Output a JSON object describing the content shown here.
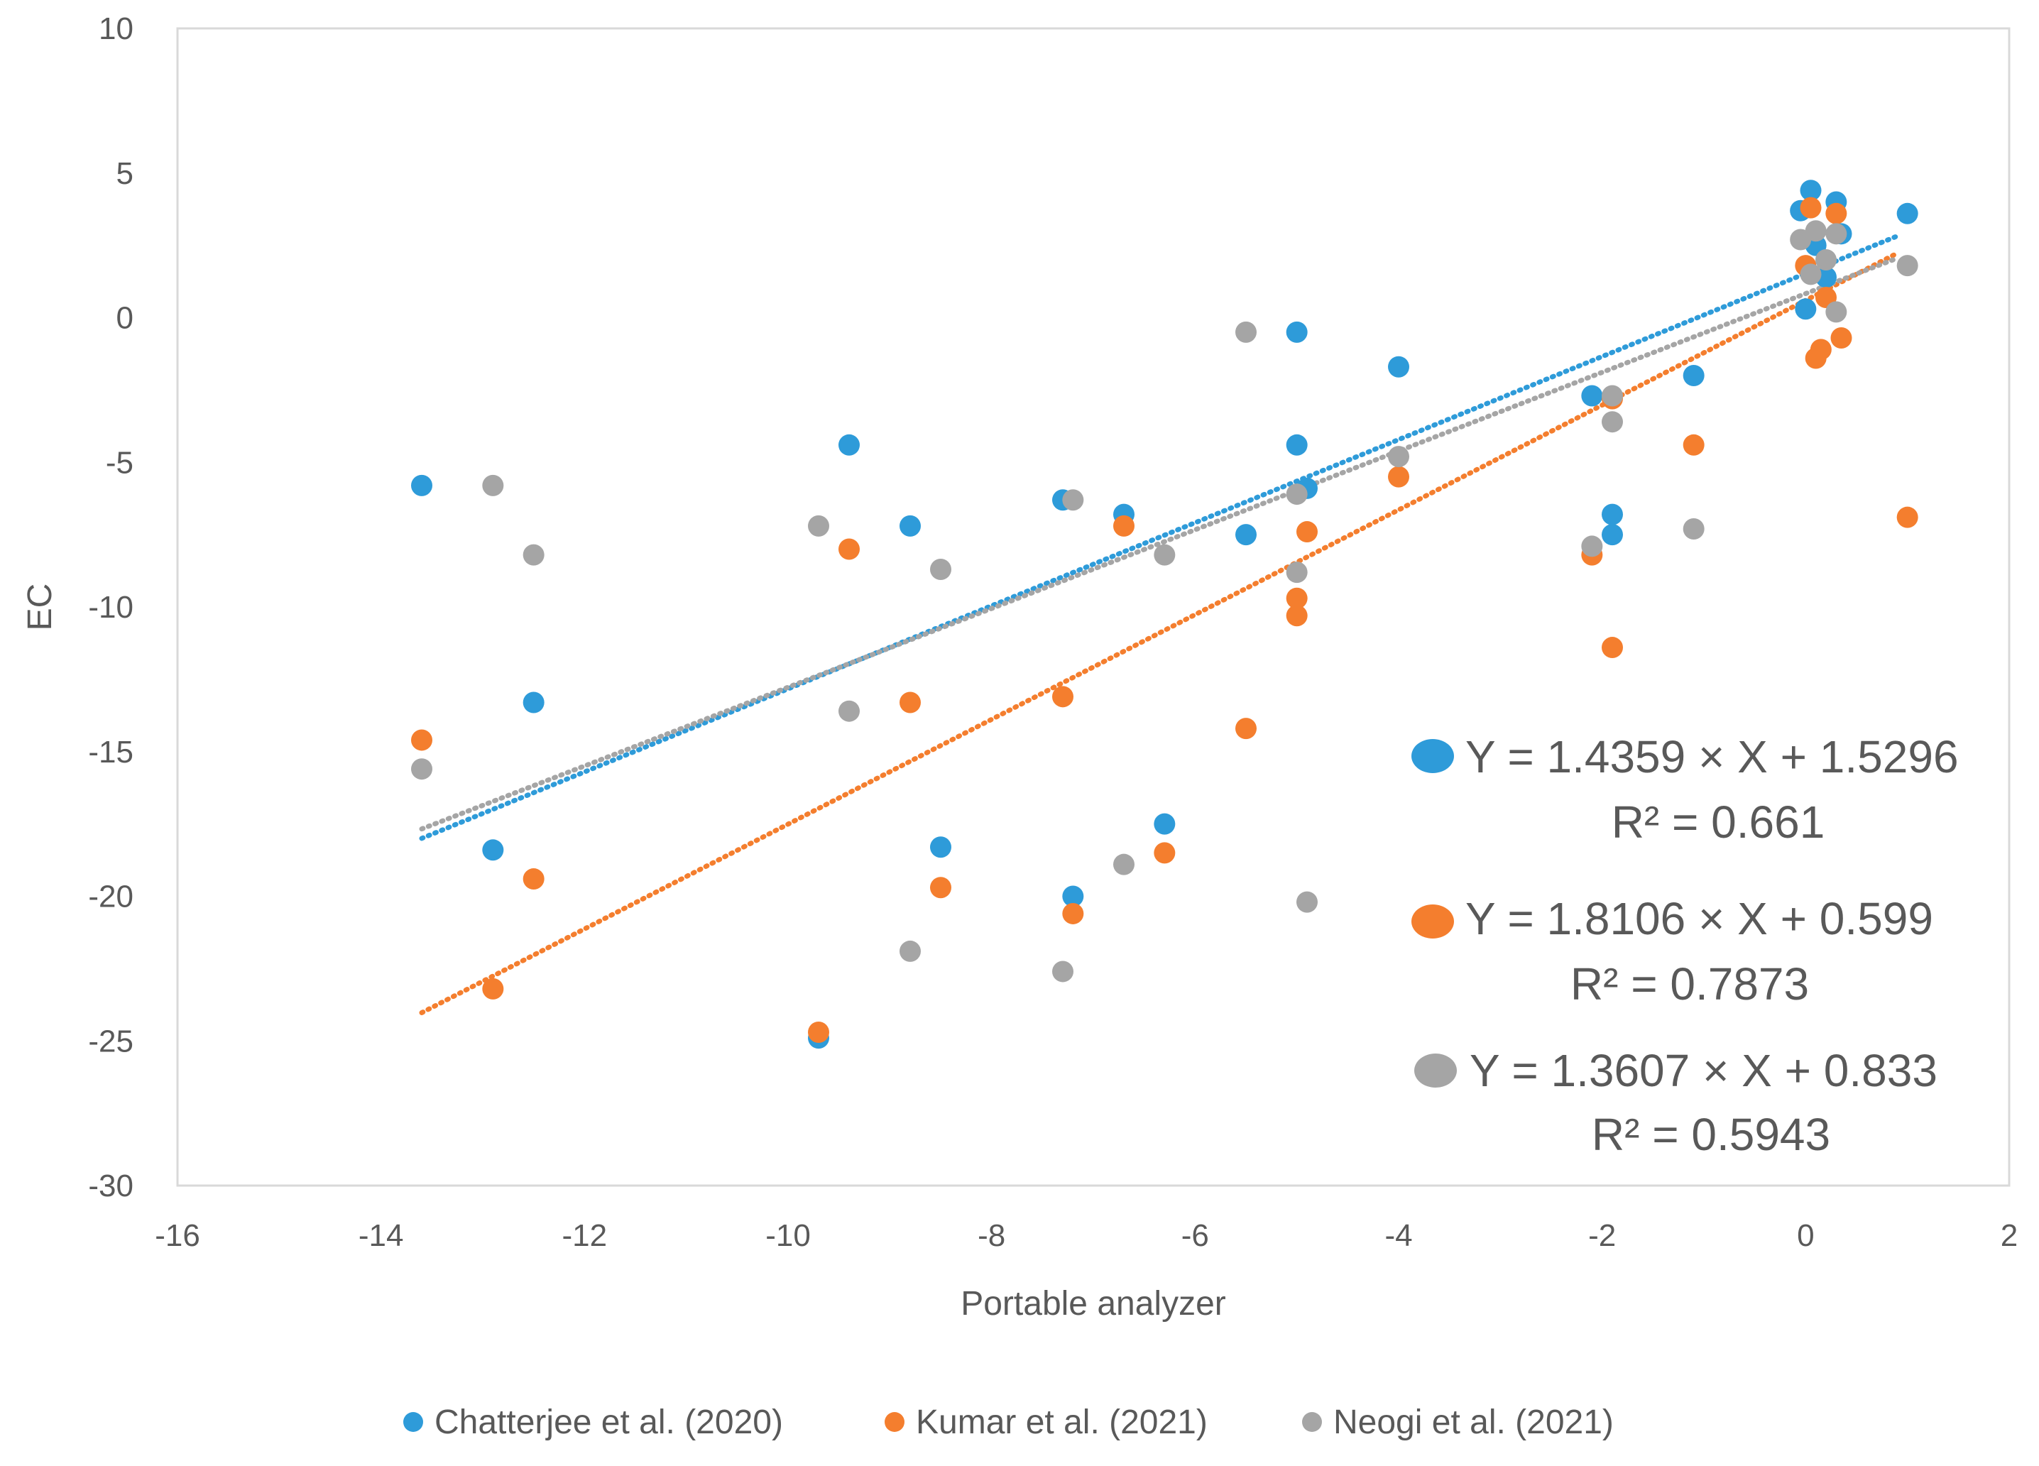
{
  "chart_data": {
    "type": "scatter",
    "title": "",
    "xlabel": "Portable analyzer",
    "ylabel": "EC",
    "xlim": [
      -16,
      2
    ],
    "ylim": [
      -30,
      10
    ],
    "x_ticks": [
      "-16",
      "-14",
      "-12",
      "-10",
      "-8",
      "-6",
      "-4",
      "-2",
      "0",
      "2"
    ],
    "y_ticks": [
      "10",
      "5",
      "0",
      "-5",
      "-10",
      "-15",
      "-20",
      "-25",
      "-30"
    ],
    "grid": false,
    "legend_position": "bottom",
    "series": [
      {
        "name": "Chatterjee et al. (2020)",
        "color": "#2E9BD9",
        "points": [
          [
            -13.6,
            -5.8
          ],
          [
            -12.9,
            -18.4
          ],
          [
            -12.5,
            -13.3
          ],
          [
            -9.7,
            -24.9
          ],
          [
            -9.4,
            -4.4
          ],
          [
            -8.8,
            -7.2
          ],
          [
            -8.5,
            -18.3
          ],
          [
            -7.3,
            -6.3
          ],
          [
            -7.2,
            -20.0
          ],
          [
            -6.7,
            -6.8
          ],
          [
            -6.3,
            -17.5
          ],
          [
            -5.5,
            -7.5
          ],
          [
            -5.0,
            -0.5
          ],
          [
            -5.0,
            -4.4
          ],
          [
            -4.9,
            -5.9
          ],
          [
            -4.0,
            -1.7
          ],
          [
            -2.1,
            -2.7
          ],
          [
            -1.9,
            -6.8
          ],
          [
            -1.9,
            -7.5
          ],
          [
            -1.1,
            -2.0
          ],
          [
            -0.05,
            3.7
          ],
          [
            0.05,
            4.4
          ],
          [
            0.1,
            2.5
          ],
          [
            0.2,
            1.4
          ],
          [
            0.3,
            4.0
          ],
          [
            0.35,
            2.9
          ],
          [
            0.0,
            0.3
          ],
          [
            1.0,
            3.6
          ]
        ],
        "trend": {
          "slope": 1.4359,
          "intercept": 1.5296,
          "x_range": [
            -13.6,
            0.9
          ]
        },
        "equation": "Y = 1.4359 × X + 1.5296",
        "r2": "R² = 0.661"
      },
      {
        "name": "Kumar et al. (2021)",
        "color": "#F47E2E",
        "points": [
          [
            -13.6,
            -14.6
          ],
          [
            -12.9,
            -23.2
          ],
          [
            -12.5,
            -19.4
          ],
          [
            -9.7,
            -24.7
          ],
          [
            -9.4,
            -8.0
          ],
          [
            -8.8,
            -13.3
          ],
          [
            -8.5,
            -19.7
          ],
          [
            -7.3,
            -13.1
          ],
          [
            -7.2,
            -20.6
          ],
          [
            -6.7,
            -7.2
          ],
          [
            -6.3,
            -18.5
          ],
          [
            -5.5,
            -14.2
          ],
          [
            -5.0,
            -9.7
          ],
          [
            -5.0,
            -10.3
          ],
          [
            -4.9,
            -7.4
          ],
          [
            -4.0,
            -5.5
          ],
          [
            -2.1,
            -8.2
          ],
          [
            -1.9,
            -2.8
          ],
          [
            -1.9,
            -11.4
          ],
          [
            -1.1,
            -4.4
          ],
          [
            0.05,
            3.8
          ],
          [
            0.1,
            -1.4
          ],
          [
            0.15,
            -1.1
          ],
          [
            0.3,
            3.6
          ],
          [
            0.35,
            -0.7
          ],
          [
            0.0,
            1.8
          ],
          [
            0.2,
            0.7
          ],
          [
            1.0,
            -6.9
          ]
        ],
        "trend": {
          "slope": 1.8106,
          "intercept": 0.599,
          "x_range": [
            -13.6,
            0.9
          ]
        },
        "equation": "Y = 1.8106 × X + 0.599",
        "r2": "R² = 0.7873"
      },
      {
        "name": "Neogi et al. (2021)",
        "color": "#A5A5A5",
        "points": [
          [
            -13.6,
            -15.6
          ],
          [
            -12.9,
            -5.8
          ],
          [
            -12.5,
            -8.2
          ],
          [
            -9.7,
            -7.2
          ],
          [
            -9.4,
            -13.6
          ],
          [
            -8.8,
            -21.9
          ],
          [
            -8.5,
            -8.7
          ],
          [
            -7.3,
            -22.6
          ],
          [
            -7.2,
            -6.3
          ],
          [
            -6.7,
            -18.9
          ],
          [
            -6.3,
            -8.2
          ],
          [
            -5.5,
            -0.5
          ],
          [
            -5.0,
            -6.1
          ],
          [
            -5.0,
            -8.8
          ],
          [
            -4.9,
            -20.2
          ],
          [
            -4.0,
            -4.8
          ],
          [
            -2.1,
            -7.9
          ],
          [
            -1.9,
            -2.7
          ],
          [
            -1.9,
            -3.6
          ],
          [
            -1.1,
            -7.3
          ],
          [
            -0.05,
            2.7
          ],
          [
            0.1,
            3.0
          ],
          [
            0.2,
            2.0
          ],
          [
            0.3,
            2.9
          ],
          [
            0.3,
            0.2
          ],
          [
            0.05,
            1.5
          ],
          [
            1.0,
            1.8
          ]
        ],
        "trend": {
          "slope": 1.3607,
          "intercept": 0.833,
          "x_range": [
            -13.6,
            0.9
          ]
        },
        "equation": "Y = 1.3607 × X + 0.833",
        "r2": "R² = 0.5943"
      }
    ]
  }
}
